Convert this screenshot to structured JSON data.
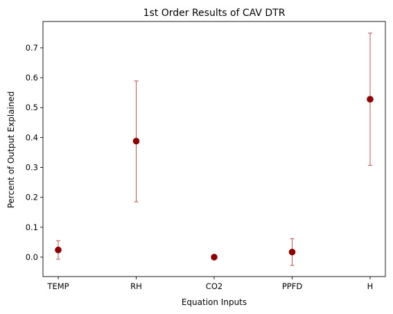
{
  "chart_data": {
    "type": "scatter",
    "title": "1st Order Results of CAV DTR",
    "xlabel": "Equation Inputs",
    "ylabel": "Percent of Output Explained",
    "categories": [
      "TEMP",
      "RH",
      "CO2",
      "PPFD",
      "H"
    ],
    "values": [
      0.024,
      0.388,
      0.0,
      0.017,
      0.528
    ],
    "error_low": [
      -0.007,
      0.185,
      0.0,
      -0.028,
      0.307
    ],
    "error_high": [
      0.055,
      0.589,
      0.0,
      0.062,
      0.749
    ],
    "ylim": [
      -0.065,
      0.788
    ],
    "yticks": [
      0.0,
      0.1,
      0.2,
      0.3,
      0.4,
      0.5,
      0.6,
      0.7
    ],
    "ytick_labels": [
      "0.0",
      "0.1",
      "0.2",
      "0.3",
      "0.4",
      "0.5",
      "0.6",
      "0.7"
    ],
    "grid": false,
    "colors": {
      "marker": "#8b0000",
      "errorbar": "#a52a2a",
      "axis": "#000000"
    }
  }
}
